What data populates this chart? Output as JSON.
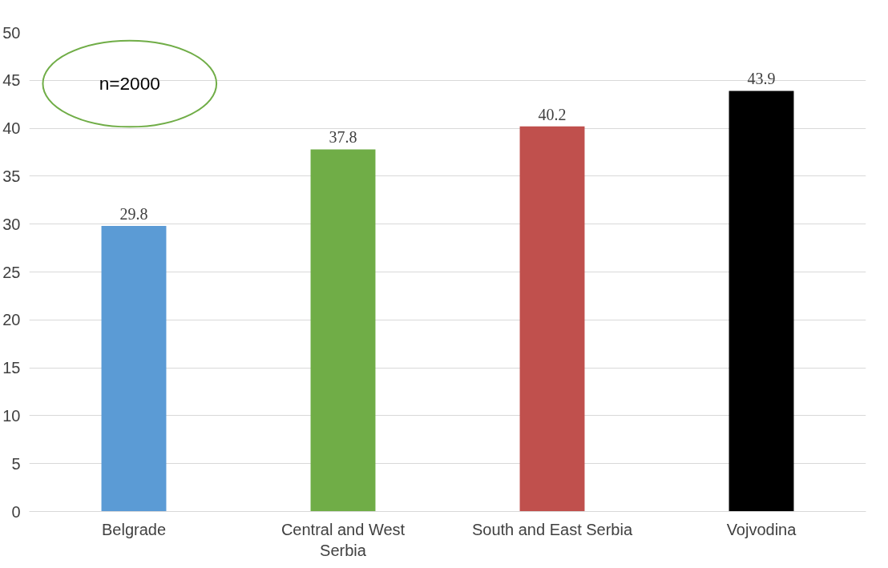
{
  "chart_data": {
    "type": "bar",
    "categories": [
      "Belgrade",
      "Central and West\nSerbia",
      "South and East Serbia",
      "Vojvodina"
    ],
    "values": [
      29.8,
      37.8,
      40.2,
      43.9
    ],
    "colors": [
      "#5b9bd5",
      "#70ad47",
      "#c0504d",
      "#000000"
    ],
    "ylim": [
      0,
      50
    ],
    "yticks": [
      0,
      5,
      10,
      15,
      20,
      25,
      30,
      35,
      40,
      45,
      50
    ],
    "grid": "y",
    "data_labels": true,
    "annotations": [
      "n=2000"
    ]
  }
}
